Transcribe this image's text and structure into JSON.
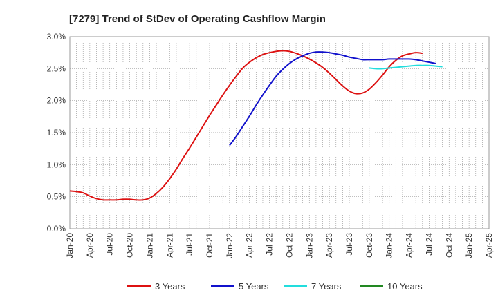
{
  "chart_data": {
    "type": "line",
    "title": "[7279]  Trend of StDev of Operating Cashflow Margin",
    "xlabel": "",
    "ylabel": "",
    "x_ticks": [
      "Jan-20",
      "Apr-20",
      "Jul-20",
      "Oct-20",
      "Jan-21",
      "Apr-21",
      "Jul-21",
      "Oct-21",
      "Jan-22",
      "Apr-22",
      "Jul-22",
      "Oct-22",
      "Jan-23",
      "Apr-23",
      "Jul-23",
      "Oct-23",
      "Jan-24",
      "Apr-24",
      "Jul-24",
      "Oct-24",
      "Jan-25",
      "Apr-25"
    ],
    "y_ticks": [
      "0.0%",
      "0.5%",
      "1.0%",
      "1.5%",
      "2.0%",
      "2.5%",
      "3.0%"
    ],
    "ylim": [
      0,
      3.0
    ],
    "grid": true,
    "legend": "bottom",
    "series": [
      {
        "name": "3 Years",
        "color": "#dd1111",
        "points": [
          [
            "Jan-20",
            0.59
          ],
          [
            "Feb-20",
            0.58
          ],
          [
            "Mar-20",
            0.56
          ],
          [
            "Apr-20",
            0.51
          ],
          [
            "May-20",
            0.47
          ],
          [
            "Jun-20",
            0.45
          ],
          [
            "Jul-20",
            0.45
          ],
          [
            "Aug-20",
            0.45
          ],
          [
            "Sep-20",
            0.46
          ],
          [
            "Oct-20",
            0.46
          ],
          [
            "Nov-20",
            0.45
          ],
          [
            "Dec-20",
            0.45
          ],
          [
            "Jan-21",
            0.48
          ],
          [
            "Feb-21",
            0.55
          ],
          [
            "Mar-21",
            0.65
          ],
          [
            "Apr-21",
            0.78
          ],
          [
            "May-21",
            0.93
          ],
          [
            "Jun-21",
            1.1
          ],
          [
            "Jul-21",
            1.26
          ],
          [
            "Aug-21",
            1.43
          ],
          [
            "Sep-21",
            1.6
          ],
          [
            "Oct-21",
            1.77
          ],
          [
            "Nov-21",
            1.93
          ],
          [
            "Dec-21",
            2.09
          ],
          [
            "Jan-22",
            2.24
          ],
          [
            "Feb-22",
            2.38
          ],
          [
            "Mar-22",
            2.51
          ],
          [
            "Apr-22",
            2.6
          ],
          [
            "May-22",
            2.67
          ],
          [
            "Jun-22",
            2.72
          ],
          [
            "Jul-22",
            2.75
          ],
          [
            "Aug-22",
            2.77
          ],
          [
            "Sep-22",
            2.78
          ],
          [
            "Oct-22",
            2.77
          ],
          [
            "Nov-22",
            2.74
          ],
          [
            "Dec-22",
            2.7
          ],
          [
            "Jan-23",
            2.65
          ],
          [
            "Feb-23",
            2.59
          ],
          [
            "Mar-23",
            2.52
          ],
          [
            "Apr-23",
            2.43
          ],
          [
            "May-23",
            2.33
          ],
          [
            "Jun-23",
            2.23
          ],
          [
            "Jul-23",
            2.15
          ],
          [
            "Aug-23",
            2.11
          ],
          [
            "Sep-23",
            2.12
          ],
          [
            "Oct-23",
            2.18
          ],
          [
            "Nov-23",
            2.28
          ],
          [
            "Dec-23",
            2.4
          ],
          [
            "Jan-24",
            2.53
          ],
          [
            "Feb-24",
            2.63
          ],
          [
            "Mar-24",
            2.7
          ],
          [
            "Apr-24",
            2.73
          ],
          [
            "May-24",
            2.75
          ],
          [
            "Jun-24",
            2.74
          ]
        ]
      },
      {
        "name": "5 Years",
        "color": "#1111cc",
        "points": [
          [
            "Jan-22",
            1.3
          ],
          [
            "Feb-22",
            1.44
          ],
          [
            "Mar-22",
            1.6
          ],
          [
            "Apr-22",
            1.76
          ],
          [
            "May-22",
            1.93
          ],
          [
            "Jun-22",
            2.09
          ],
          [
            "Jul-22",
            2.24
          ],
          [
            "Aug-22",
            2.38
          ],
          [
            "Sep-22",
            2.49
          ],
          [
            "Oct-22",
            2.58
          ],
          [
            "Nov-22",
            2.65
          ],
          [
            "Dec-22",
            2.7
          ],
          [
            "Jan-23",
            2.74
          ],
          [
            "Feb-23",
            2.76
          ],
          [
            "Mar-23",
            2.76
          ],
          [
            "Apr-23",
            2.75
          ],
          [
            "May-23",
            2.73
          ],
          [
            "Jun-23",
            2.71
          ],
          [
            "Jul-23",
            2.68
          ],
          [
            "Aug-23",
            2.66
          ],
          [
            "Sep-23",
            2.64
          ],
          [
            "Oct-23",
            2.64
          ],
          [
            "Nov-23",
            2.64
          ],
          [
            "Dec-23",
            2.64
          ],
          [
            "Jan-24",
            2.65
          ],
          [
            "Feb-24",
            2.65
          ],
          [
            "Mar-24",
            2.65
          ],
          [
            "Apr-24",
            2.65
          ],
          [
            "May-24",
            2.64
          ],
          [
            "Jun-24",
            2.62
          ],
          [
            "Jul-24",
            2.6
          ],
          [
            "Aug-24",
            2.58
          ]
        ]
      },
      {
        "name": "7 Years",
        "color": "#22dddd",
        "points": [
          [
            "Oct-23",
            2.51
          ],
          [
            "Nov-23",
            2.5
          ],
          [
            "Dec-23",
            2.5
          ],
          [
            "Jan-24",
            2.51
          ],
          [
            "Feb-24",
            2.52
          ],
          [
            "Mar-24",
            2.53
          ],
          [
            "Apr-24",
            2.54
          ],
          [
            "May-24",
            2.55
          ],
          [
            "Jun-24",
            2.55
          ],
          [
            "Jul-24",
            2.55
          ],
          [
            "Aug-24",
            2.54
          ],
          [
            "Sep-24",
            2.53
          ]
        ]
      },
      {
        "name": "10 Years",
        "color": "#228822",
        "points": []
      }
    ]
  }
}
